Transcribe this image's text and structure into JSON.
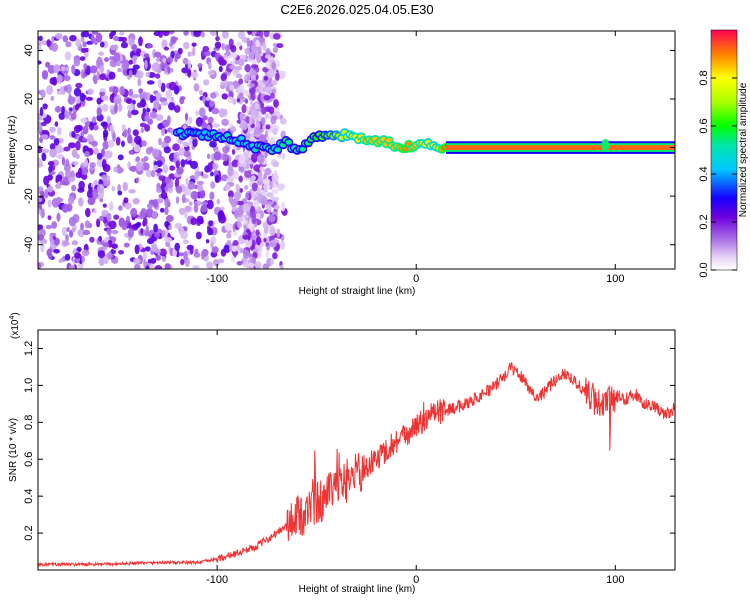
{
  "figure_title": "C2E6.2026.025.04.05.E30",
  "chart_data": [
    {
      "type": "heatmap",
      "title": "C2E6.2026.025.04.05.E30",
      "xlabel": "Height of straight line (km)",
      "ylabel": "Frequency (Hz)",
      "xlim": [
        -190,
        130
      ],
      "ylim": [
        -50,
        48
      ],
      "x_ticks": [
        -100,
        0,
        100
      ],
      "x_tick_labels": [
        "-100",
        "0",
        "100"
      ],
      "y_ticks": [
        -40,
        -20,
        0,
        20,
        40
      ],
      "y_tick_labels": [
        "-40",
        "-20",
        "0",
        "20",
        "40"
      ],
      "colorbar": {
        "label": "Normalized spectral amplitude",
        "range": [
          0,
          1
        ],
        "ticks": [
          0.0,
          0.2,
          0.4,
          0.6,
          0.8
        ],
        "tick_labels": [
          "0.0",
          "0.2",
          "0.4",
          "0.6",
          "0.8"
        ]
      },
      "ridge": {
        "x": [
          -120,
          -110,
          -100,
          -95,
          -90,
          -85,
          -80,
          -75,
          -70,
          -65,
          -60,
          -55,
          -50,
          -45,
          -40,
          -35,
          -30,
          -25,
          -20,
          -15,
          -10,
          -5,
          0,
          5,
          10,
          15,
          20,
          60,
          95,
          130
        ],
        "frequency": [
          6,
          5,
          5,
          4,
          3,
          2,
          0,
          -1,
          0,
          3,
          -2,
          2,
          4,
          5,
          5,
          5,
          4,
          3,
          3,
          2,
          1,
          0,
          1,
          2,
          1,
          0,
          0,
          0,
          0,
          0
        ],
        "amplitude": [
          0.45,
          0.4,
          0.45,
          0.5,
          0.45,
          0.45,
          0.5,
          0.5,
          0.5,
          0.55,
          0.5,
          0.55,
          0.6,
          0.65,
          0.7,
          0.75,
          0.8,
          0.85,
          0.85,
          0.85,
          0.85,
          0.9,
          0.85,
          0.8,
          0.75,
          0.95,
          0.98,
          0.98,
          0.98,
          0.98
        ]
      }
    },
    {
      "type": "line",
      "xlabel": "Height of straight line (km)",
      "ylabel": "SNR (10 * v/v)",
      "y_multiplier": "(x10",
      "y_multiplier_exp": "4",
      "y_multiplier_close": ")",
      "xlim": [
        -190,
        130
      ],
      "ylim": [
        0,
        1.3
      ],
      "x_ticks": [
        -100,
        0,
        100
      ],
      "x_tick_labels": [
        "-100",
        "0",
        "100"
      ],
      "y_ticks": [
        0.2,
        0.4,
        0.6,
        0.8,
        1.0,
        1.2
      ],
      "y_tick_labels": [
        "0.2",
        "0.4",
        "0.6",
        "0.8",
        "1.0",
        "1.2"
      ],
      "line_color": "#ee3333",
      "series": [
        {
          "name": "SNR",
          "x": [
            -190,
            -160,
            -130,
            -110,
            -100,
            -90,
            -80,
            -70,
            -60,
            -50,
            -40,
            -30,
            -20,
            -10,
            0,
            10,
            20,
            30,
            40,
            48,
            55,
            60,
            65,
            70,
            75,
            80,
            85,
            90,
            95,
            100,
            105,
            110,
            115,
            120,
            125,
            130
          ],
          "y": [
            0.03,
            0.03,
            0.04,
            0.04,
            0.06,
            0.09,
            0.13,
            0.2,
            0.28,
            0.36,
            0.44,
            0.52,
            0.6,
            0.7,
            0.78,
            0.85,
            0.88,
            0.93,
            1.0,
            1.1,
            1.02,
            0.93,
            0.97,
            1.03,
            1.07,
            1.02,
            0.96,
            0.92,
            0.9,
            0.94,
            0.93,
            0.95,
            0.9,
            0.88,
            0.84,
            0.88
          ]
        }
      ]
    }
  ]
}
